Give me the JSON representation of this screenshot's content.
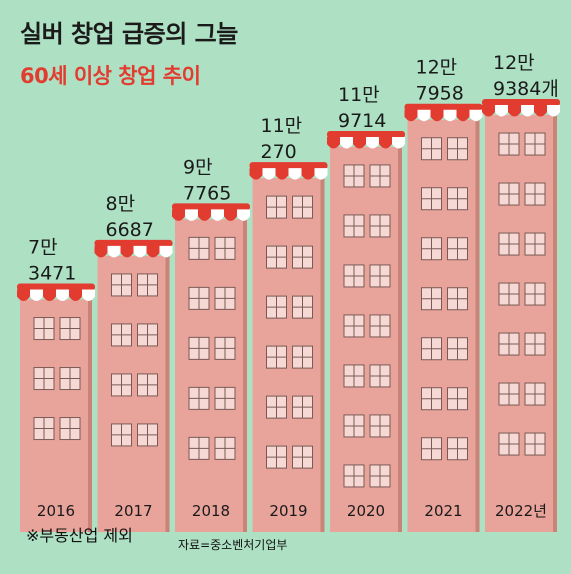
{
  "headline": "실버 창업 급증의 그늘",
  "subheadline": "60세 이상 창업 추이",
  "footnote": "※부동산업 제외",
  "source": "자료=중소벤처기업부",
  "colors": {
    "background": "#aee0c4",
    "building": "#e8a39b",
    "building_side": "#c98379",
    "awning": "#e23b2f",
    "window": "#f6d9d4"
  },
  "chart_data": {
    "type": "bar",
    "title": "60세 이상 창업 추이",
    "categories": [
      "2016",
      "2017",
      "2018",
      "2019",
      "2020",
      "2021",
      "2022년"
    ],
    "values": [
      73471,
      86687,
      97765,
      110270,
      119714,
      127958,
      129384
    ],
    "value_labels": [
      [
        "7만",
        "3471"
      ],
      [
        "8만",
        "6687"
      ],
      [
        "9만",
        "7765"
      ],
      [
        "11만",
        "270"
      ],
      [
        "11만",
        "9714"
      ],
      [
        "12만",
        "7958"
      ],
      [
        "12만",
        "9384개"
      ]
    ],
    "ylim": [
      0,
      140000
    ],
    "grid": false,
    "legend": "none"
  }
}
